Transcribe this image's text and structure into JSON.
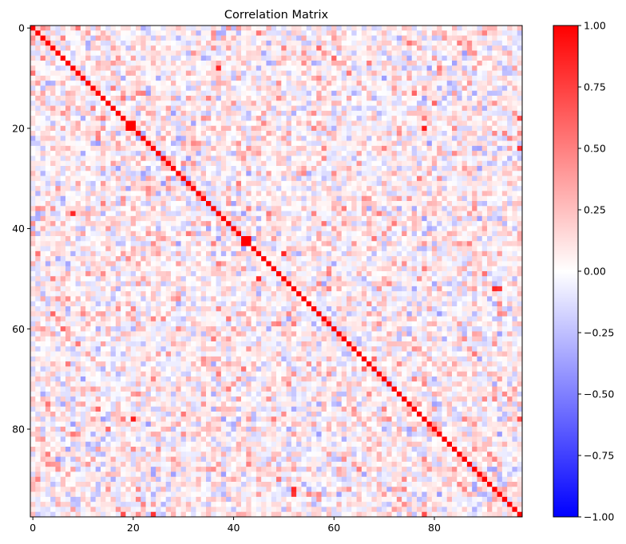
{
  "chart_data": {
    "type": "heatmap",
    "title": "Correlation Matrix",
    "matrix_size": 98,
    "x_ticks": [
      0,
      20,
      40,
      60,
      80
    ],
    "y_ticks": [
      0,
      20,
      40,
      60,
      80
    ],
    "x_tick_labels": [
      "0",
      "20",
      "40",
      "60",
      "80"
    ],
    "y_tick_labels": [
      "0",
      "20",
      "40",
      "60",
      "80"
    ],
    "colorbar": {
      "colormap": "bwr",
      "range": [
        -1.0,
        1.0
      ],
      "ticks": [
        -1.0,
        -0.75,
        -0.5,
        -0.25,
        0.0,
        0.25,
        0.5,
        0.75,
        1.0
      ],
      "tick_labels": [
        "−1.00",
        "−0.75",
        "−0.50",
        "−0.25",
        "0.00",
        "0.25",
        "0.50",
        "0.75",
        "1.00"
      ]
    },
    "diagonal_value": 1.0,
    "highlighted_cells": [
      {
        "row": 19,
        "col": 20,
        "value": 1.0
      },
      {
        "row": 20,
        "col": 19,
        "value": 1.0
      },
      {
        "row": 42,
        "col": 43,
        "value": 1.0
      },
      {
        "row": 43,
        "col": 42,
        "value": 1.0
      },
      {
        "row": 78,
        "col": 20,
        "value": 0.9
      },
      {
        "row": 20,
        "col": 78,
        "value": 0.9
      },
      {
        "row": 93,
        "col": 52,
        "value": 0.8
      },
      {
        "row": 52,
        "col": 93,
        "value": 0.8
      },
      {
        "row": 8,
        "col": 37,
        "value": 0.85
      },
      {
        "row": 37,
        "col": 8,
        "value": 0.85
      },
      {
        "row": 45,
        "col": 50,
        "value": 0.85
      },
      {
        "row": 50,
        "col": 45,
        "value": 0.85
      },
      {
        "row": 52,
        "col": 92,
        "value": 0.85
      },
      {
        "row": 92,
        "col": 52,
        "value": 0.85
      },
      {
        "row": 60,
        "col": 6,
        "value": 0.6
      },
      {
        "row": 6,
        "col": 60,
        "value": 0.6
      },
      {
        "row": 57,
        "col": 4,
        "value": 0.6
      },
      {
        "row": 4,
        "col": 57,
        "value": 0.6
      },
      {
        "row": 15,
        "col": 80,
        "value": 0.6
      },
      {
        "row": 80,
        "col": 15,
        "value": 0.6
      },
      {
        "row": 13,
        "col": 76,
        "value": 0.6
      },
      {
        "row": 76,
        "col": 13,
        "value": 0.6
      },
      {
        "row": 66,
        "col": 68,
        "value": 0.6
      },
      {
        "row": 68,
        "col": 66,
        "value": 0.6
      },
      {
        "row": 42,
        "col": 68,
        "value": 0.55
      },
      {
        "row": 68,
        "col": 42,
        "value": 0.55
      },
      {
        "row": 24,
        "col": 97,
        "value": 0.8
      },
      {
        "row": 97,
        "col": 24,
        "value": 0.8
      },
      {
        "row": 18,
        "col": 97,
        "value": 0.7
      },
      {
        "row": 97,
        "col": 18,
        "value": 0.7
      },
      {
        "row": 78,
        "col": 97,
        "value": 0.7
      },
      {
        "row": 97,
        "col": 78,
        "value": 0.7
      }
    ],
    "off_diagonal_note": "other cells mostly weak correlations between about -0.35 and 0.45"
  }
}
